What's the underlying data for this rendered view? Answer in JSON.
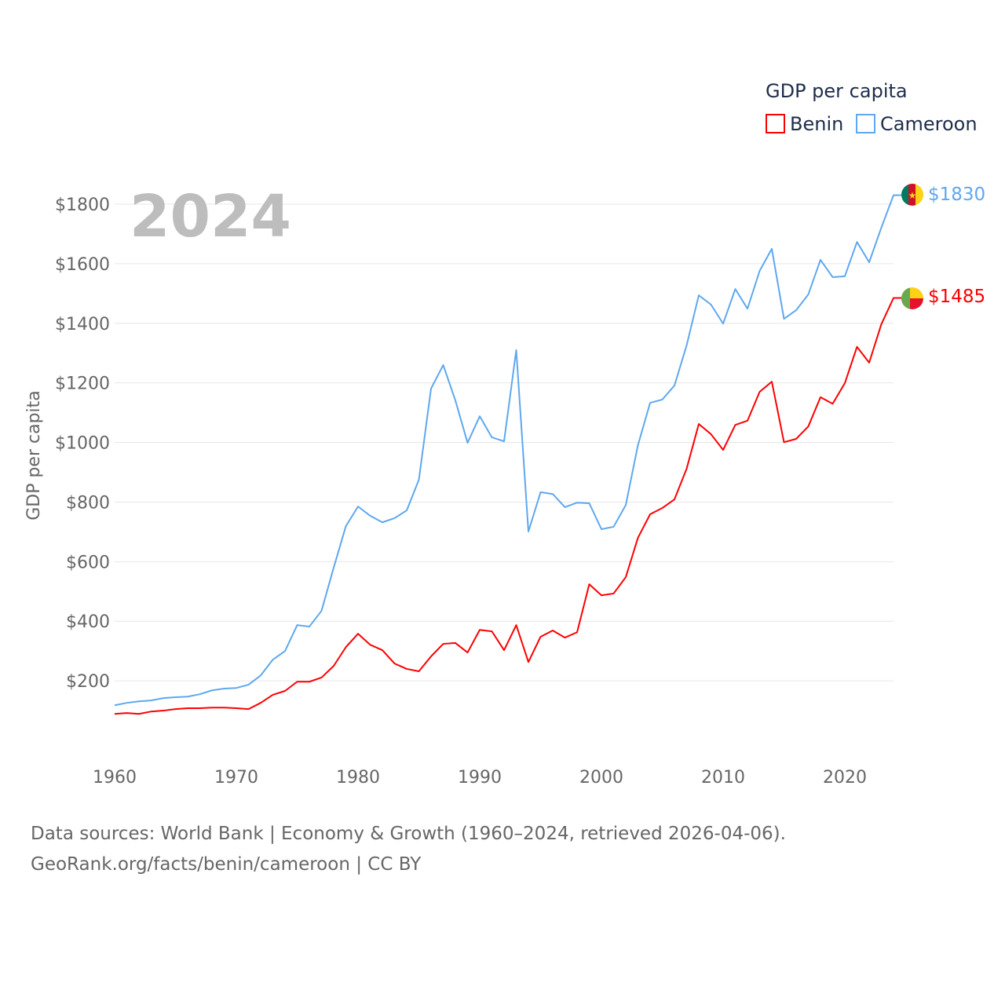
{
  "chart_data": {
    "type": "line",
    "title": "GDP per capita",
    "year_label": "2024",
    "xlabel": "",
    "ylabel": "GDP per capita",
    "xlim": [
      1960,
      2024
    ],
    "ylim": [
      0,
      1900
    ],
    "x_ticks": [
      1960,
      1970,
      1980,
      1990,
      2000,
      2010,
      2020
    ],
    "y_ticks": [
      200,
      400,
      600,
      800,
      1000,
      1200,
      1400,
      1600,
      1800
    ],
    "y_tick_labels": [
      "$200",
      "$400",
      "$600",
      "$800",
      "$1000",
      "$1200",
      "$1400",
      "$1600",
      "$1800"
    ],
    "legend_title": "GDP per capita",
    "legend_position": "top-right",
    "grid": true,
    "x": [
      1960,
      1961,
      1962,
      1963,
      1964,
      1965,
      1966,
      1967,
      1968,
      1969,
      1970,
      1971,
      1972,
      1973,
      1974,
      1975,
      1976,
      1977,
      1978,
      1979,
      1980,
      1981,
      1982,
      1983,
      1984,
      1985,
      1986,
      1987,
      1988,
      1989,
      1990,
      1991,
      1992,
      1993,
      1994,
      1995,
      1996,
      1997,
      1998,
      1999,
      2000,
      2001,
      2002,
      2003,
      2004,
      2005,
      2006,
      2007,
      2008,
      2009,
      2010,
      2011,
      2012,
      2013,
      2014,
      2015,
      2016,
      2017,
      2018,
      2019,
      2020,
      2021,
      2022,
      2023,
      2024
    ],
    "series": [
      {
        "name": "Benin",
        "color": "#ff0000",
        "end_label": "$1485",
        "values": [
          89,
          92,
          89,
          97,
          100,
          105,
          108,
          108,
          110,
          110,
          108,
          105,
          126,
          153,
          166,
          197,
          197,
          211,
          250,
          313,
          358,
          321,
          303,
          258,
          240,
          232,
          282,
          324,
          327,
          295,
          371,
          366,
          303,
          387,
          263,
          348,
          369,
          345,
          363,
          524,
          487,
          493,
          548,
          680,
          759,
          780,
          809,
          912,
          1062,
          1028,
          975,
          1059,
          1073,
          1170,
          1204,
          1001,
          1012,
          1054,
          1152,
          1130,
          1199,
          1321,
          1268,
          1397,
          1485
        ]
      },
      {
        "name": "Cameroon",
        "color": "#5ea8ef",
        "end_label": "$1830",
        "values": [
          118,
          126,
          131,
          134,
          142,
          145,
          147,
          155,
          168,
          174,
          176,
          187,
          218,
          271,
          300,
          387,
          382,
          435,
          580,
          719,
          785,
          754,
          732,
          746,
          772,
          875,
          1181,
          1260,
          1141,
          999,
          1088,
          1017,
          1004,
          1310,
          701,
          833,
          827,
          783,
          798,
          796,
          709,
          717,
          790,
          991,
          1133,
          1144,
          1191,
          1326,
          1494,
          1463,
          1399,
          1515,
          1449,
          1576,
          1650,
          1415,
          1444,
          1497,
          1613,
          1555,
          1558,
          1673,
          1605,
          1721,
          1830
        ]
      }
    ]
  },
  "footer": {
    "line1": "Data sources: World Bank | Economy & Growth (1960–2024, retrieved 2026-04-06).",
    "line2": "GeoRank.org/facts/benin/cameroon | CC BY"
  }
}
